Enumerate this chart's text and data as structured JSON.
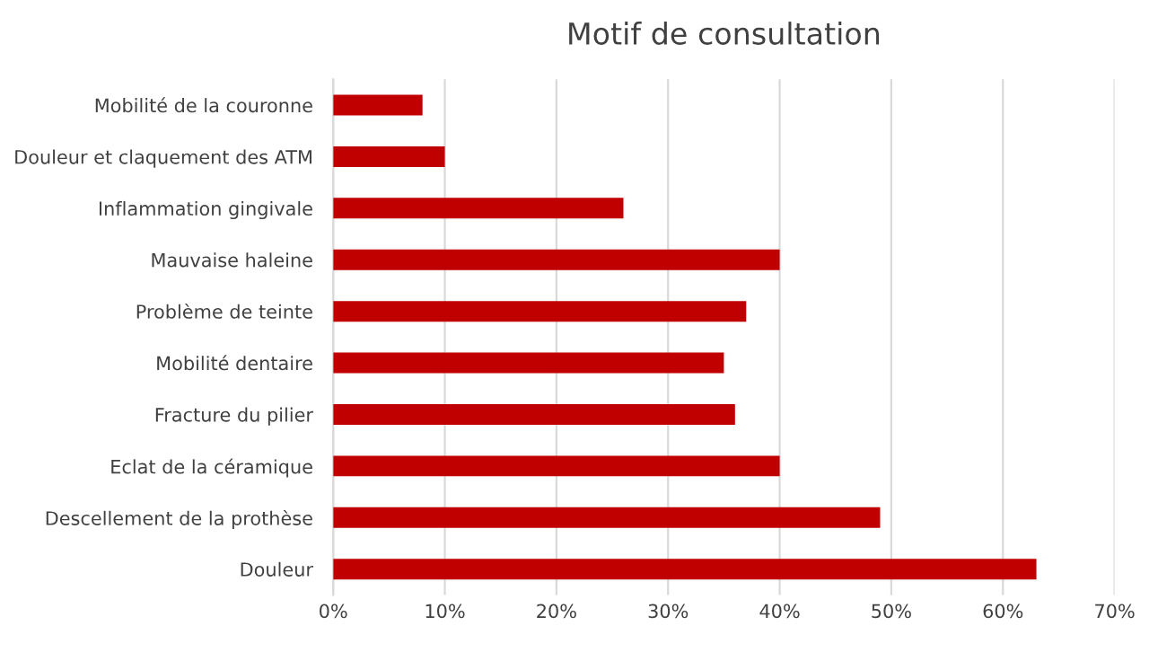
{
  "chart_data": {
    "type": "bar",
    "orientation": "horizontal",
    "title": "Motif de consultation",
    "categories": [
      "Mobilité de la couronne",
      "Douleur et claquement des ATM",
      "Inflammation gingivale",
      "Mauvaise haleine",
      "Problème de teinte",
      "Mobilité dentaire",
      "Fracture du pilier",
      "Eclat de la céramique",
      "Descellement de la prothèse",
      "Douleur"
    ],
    "values": [
      8,
      10,
      26,
      40,
      37,
      35,
      36,
      40,
      49,
      63
    ],
    "color": "#c00000",
    "xlim": [
      0,
      70
    ],
    "xticks": [
      {
        "value": 0,
        "label": "0%"
      },
      {
        "value": 10,
        "label": "10%"
      },
      {
        "value": 20,
        "label": "20%"
      },
      {
        "value": 30,
        "label": "30%"
      },
      {
        "value": 40,
        "label": "40%"
      },
      {
        "value": 50,
        "label": "50%"
      },
      {
        "value": 60,
        "label": "60%"
      },
      {
        "value": 70,
        "label": "70%"
      }
    ],
    "grid": "x",
    "legend": false
  }
}
